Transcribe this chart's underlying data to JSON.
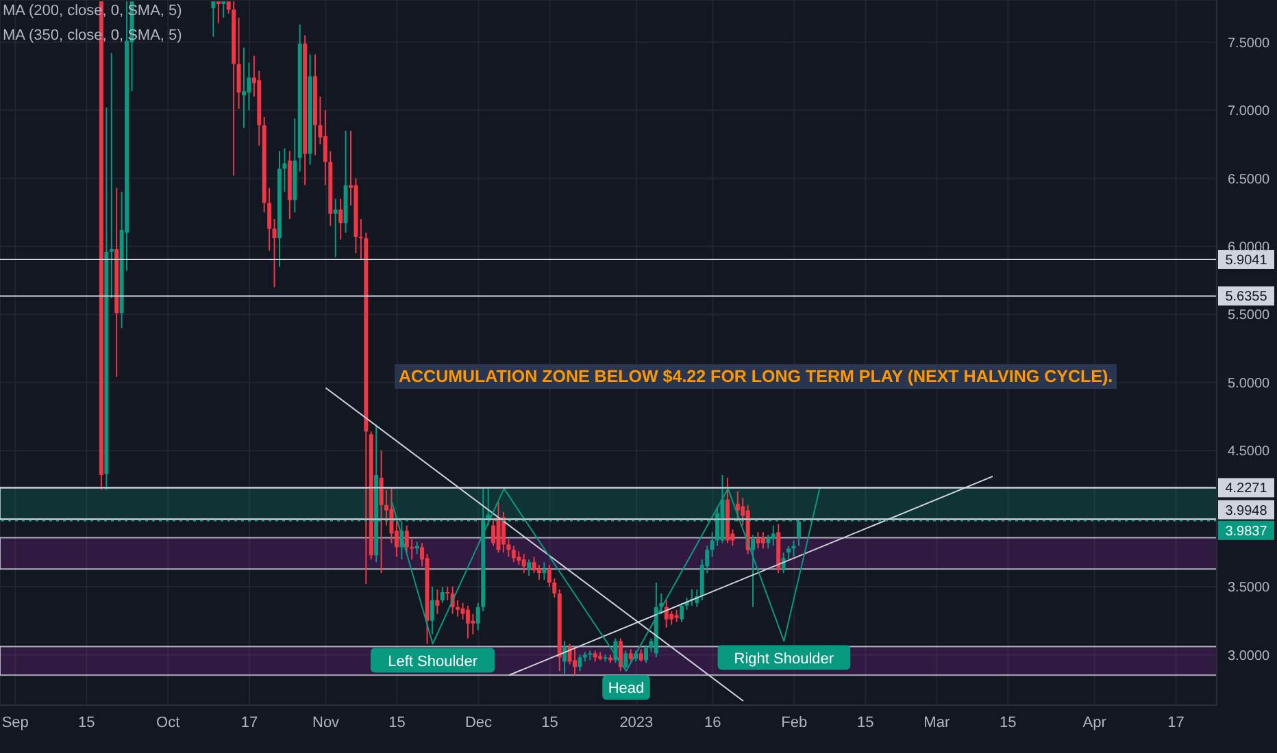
{
  "chart_data": {
    "type": "candlestick",
    "x": [
      "2022-09-18",
      "2022-09-19",
      "2022-09-20",
      "2022-09-21",
      "2022-09-22",
      "2022-09-23",
      "2022-09-24",
      "2022-10-10",
      "2022-10-11",
      "2022-10-12",
      "2022-10-13",
      "2022-10-14",
      "2022-10-15",
      "2022-10-16",
      "2022-10-17",
      "2022-10-18",
      "2022-10-19",
      "2022-10-20",
      "2022-10-21",
      "2022-10-22",
      "2022-10-23",
      "2022-10-24",
      "2022-10-25",
      "2022-10-26",
      "2022-10-27",
      "2022-10-28",
      "2022-10-29",
      "2022-10-30",
      "2022-10-31",
      "2022-11-01",
      "2022-11-02",
      "2022-11-03",
      "2022-11-04",
      "2022-11-05",
      "2022-11-06",
      "2022-11-07",
      "2022-11-08",
      "2022-11-09",
      "2022-11-10",
      "2022-11-11",
      "2022-11-12",
      "2022-11-13",
      "2022-11-14",
      "2022-11-15",
      "2022-11-16",
      "2022-11-17",
      "2022-11-18",
      "2022-11-19",
      "2022-11-20",
      "2022-11-21",
      "2022-11-22",
      "2022-11-23",
      "2022-11-24",
      "2022-11-25",
      "2022-11-26",
      "2022-11-27",
      "2022-11-28",
      "2022-11-29",
      "2022-11-30",
      "2022-12-01",
      "2022-12-02",
      "2022-12-03",
      "2022-12-04",
      "2022-12-05",
      "2022-12-06",
      "2022-12-07",
      "2022-12-08",
      "2022-12-09",
      "2022-12-10",
      "2022-12-11",
      "2022-12-12",
      "2022-12-13",
      "2022-12-14",
      "2022-12-15",
      "2022-12-16",
      "2022-12-17",
      "2022-12-18",
      "2022-12-19",
      "2022-12-20",
      "2022-12-21",
      "2022-12-22",
      "2022-12-23",
      "2022-12-24",
      "2022-12-25",
      "2022-12-26",
      "2022-12-27",
      "2022-12-28",
      "2022-12-29",
      "2022-12-30",
      "2022-12-31",
      "2023-01-01",
      "2023-01-02",
      "2023-01-03",
      "2023-01-04",
      "2023-01-05",
      "2023-01-06",
      "2023-01-07",
      "2023-01-08",
      "2023-01-09",
      "2023-01-10",
      "2023-01-11",
      "2023-01-12",
      "2023-01-13",
      "2023-01-14",
      "2023-01-15",
      "2023-01-16",
      "2023-01-17",
      "2023-01-18",
      "2023-01-19",
      "2023-01-20",
      "2023-01-21",
      "2023-01-22",
      "2023-01-23",
      "2023-01-24",
      "2023-01-25",
      "2023-01-26",
      "2023-01-27",
      "2023-01-28",
      "2023-01-29",
      "2023-01-30",
      "2023-01-31",
      "2023-02-01",
      "2023-02-02"
    ],
    "ohlc": [
      [
        7.8,
        7.8,
        4.21,
        4.32
      ],
      [
        4.33,
        7.02,
        4.21,
        5.96
      ],
      [
        5.96,
        7.42,
        5.62,
        5.98
      ],
      [
        5.98,
        6.43,
        5.04,
        5.51
      ],
      [
        5.51,
        6.4,
        5.4,
        6.12
      ],
      [
        6.1,
        7.8,
        5.82,
        7.51
      ],
      [
        7.5,
        7.8,
        7.14,
        7.8
      ],
      [
        7.75,
        7.8,
        7.54,
        7.8
      ],
      [
        7.8,
        7.8,
        7.64,
        7.78
      ],
      [
        7.78,
        7.8,
        7.68,
        7.8
      ],
      [
        7.8,
        7.8,
        7.71,
        7.74
      ],
      [
        7.74,
        7.8,
        6.52,
        7.34
      ],
      [
        7.34,
        7.68,
        7.01,
        7.13
      ],
      [
        7.11,
        7.46,
        6.87,
        7.14
      ],
      [
        7.13,
        7.35,
        7.0,
        7.24
      ],
      [
        7.24,
        7.4,
        7.1,
        7.2
      ],
      [
        7.22,
        7.29,
        6.74,
        6.89
      ],
      [
        6.89,
        6.95,
        6.25,
        6.32
      ],
      [
        6.32,
        6.43,
        5.97,
        6.13
      ],
      [
        6.13,
        6.2,
        5.7,
        6.06
      ],
      [
        6.06,
        6.7,
        5.85,
        6.57
      ],
      [
        6.57,
        6.72,
        6.4,
        6.61
      ],
      [
        6.63,
        6.7,
        6.2,
        6.34
      ],
      [
        6.34,
        6.94,
        6.25,
        6.63
      ],
      [
        6.65,
        7.63,
        6.55,
        7.49
      ],
      [
        7.49,
        7.55,
        6.45,
        6.68
      ],
      [
        6.68,
        7.41,
        6.6,
        7.25
      ],
      [
        7.25,
        7.41,
        6.67,
        6.89
      ],
      [
        6.89,
        7.1,
        6.75,
        6.8
      ],
      [
        6.81,
        7.0,
        6.45,
        6.62
      ],
      [
        6.62,
        6.7,
        6.15,
        6.24
      ],
      [
        6.24,
        6.35,
        5.92,
        6.27
      ],
      [
        6.27,
        6.35,
        6.05,
        6.17
      ],
      [
        6.17,
        6.85,
        6.1,
        6.45
      ],
      [
        6.45,
        6.85,
        6.3,
        6.43
      ],
      [
        6.45,
        6.5,
        5.95,
        6.07
      ],
      [
        6.07,
        6.2,
        5.9,
        6.06
      ],
      [
        6.06,
        6.1,
        3.52,
        4.64
      ],
      [
        4.62,
        4.64,
        3.7,
        3.73
      ],
      [
        3.73,
        4.69,
        3.68,
        4.32
      ],
      [
        4.3,
        4.5,
        3.6,
        4.1
      ],
      [
        4.1,
        4.21,
        3.95,
        4.06
      ],
      [
        4.07,
        4.22,
        3.82,
        3.89
      ],
      [
        3.91,
        4.0,
        3.72,
        3.79
      ],
      [
        3.79,
        3.98,
        3.7,
        3.91
      ],
      [
        3.91,
        3.95,
        3.75,
        3.79
      ],
      [
        3.79,
        3.85,
        3.7,
        3.78
      ],
      [
        3.78,
        3.83,
        3.74,
        3.8
      ],
      [
        3.79,
        3.82,
        3.65,
        3.7
      ],
      [
        3.71,
        3.74,
        3.08,
        3.25
      ],
      [
        3.25,
        3.5,
        3.15,
        3.4
      ],
      [
        3.4,
        3.48,
        3.3,
        3.36
      ],
      [
        3.4,
        3.5,
        3.38,
        3.46
      ],
      [
        3.46,
        3.5,
        3.4,
        3.45
      ],
      [
        3.45,
        3.5,
        3.3,
        3.35
      ],
      [
        3.35,
        3.4,
        3.28,
        3.33
      ],
      [
        3.34,
        3.38,
        3.26,
        3.3
      ],
      [
        3.33,
        3.36,
        3.12,
        3.23
      ],
      [
        3.25,
        3.3,
        3.15,
        3.23
      ],
      [
        3.23,
        3.38,
        3.18,
        3.35
      ],
      [
        3.35,
        4.22,
        3.32,
        3.99
      ],
      [
        3.99,
        4.22,
        3.95,
        4.03
      ],
      [
        3.95,
        4.0,
        3.8,
        3.82
      ],
      [
        4.01,
        4.12,
        3.75,
        3.77
      ],
      [
        4.01,
        4.05,
        3.75,
        3.81
      ],
      [
        3.81,
        3.85,
        3.72,
        3.77
      ],
      [
        3.77,
        3.8,
        3.68,
        3.71
      ],
      [
        3.72,
        3.76,
        3.66,
        3.69
      ],
      [
        3.7,
        3.74,
        3.6,
        3.65
      ],
      [
        3.63,
        3.7,
        3.58,
        3.68
      ],
      [
        3.68,
        3.72,
        3.6,
        3.62
      ],
      [
        3.63,
        3.66,
        3.55,
        3.6
      ],
      [
        3.6,
        3.68,
        3.55,
        3.63
      ],
      [
        3.63,
        3.66,
        3.5,
        3.53
      ],
      [
        3.53,
        3.56,
        3.42,
        3.45
      ],
      [
        3.45,
        3.48,
        2.88,
        2.98
      ],
      [
        2.95,
        3.1,
        2.86,
        3.06
      ],
      [
        3.06,
        3.08,
        2.93,
        2.95
      ],
      [
        2.96,
        3.05,
        2.85,
        2.91
      ],
      [
        2.91,
        3.0,
        2.88,
        2.98
      ],
      [
        2.98,
        3.02,
        2.95,
        3.0
      ],
      [
        3.0,
        3.03,
        2.96,
        3.01
      ],
      [
        3.01,
        3.03,
        2.95,
        2.98
      ],
      [
        2.99,
        3.02,
        2.96,
        2.97
      ],
      [
        2.97,
        3.0,
        2.95,
        2.98
      ],
      [
        2.98,
        3.0,
        2.94,
        2.96
      ],
      [
        2.96,
        3.12,
        2.94,
        3.1
      ],
      [
        3.1,
        3.12,
        2.88,
        2.91
      ],
      [
        2.91,
        3.03,
        2.9,
        3.01
      ],
      [
        3.01,
        3.04,
        2.95,
        2.97
      ],
      [
        2.97,
        3.03,
        2.95,
        3.01
      ],
      [
        3.01,
        3.04,
        2.95,
        2.96
      ],
      [
        2.96,
        3.07,
        2.94,
        3.05
      ],
      [
        3.05,
        3.12,
        3.02,
        3.1
      ],
      [
        3.01,
        3.53,
        2.98,
        3.35
      ],
      [
        3.35,
        3.45,
        3.3,
        3.38
      ],
      [
        3.35,
        3.4,
        3.2,
        3.26
      ],
      [
        3.3,
        3.32,
        3.22,
        3.26
      ],
      [
        3.29,
        3.33,
        3.24,
        3.27
      ],
      [
        3.26,
        3.38,
        3.24,
        3.36
      ],
      [
        3.36,
        3.42,
        3.33,
        3.39
      ],
      [
        3.4,
        3.48,
        3.36,
        3.41
      ],
      [
        3.38,
        3.48,
        3.35,
        3.43
      ],
      [
        3.43,
        3.7,
        3.4,
        3.66
      ],
      [
        3.65,
        3.8,
        3.6,
        3.77
      ],
      [
        3.77,
        3.9,
        3.72,
        3.84
      ],
      [
        3.84,
        4.08,
        3.8,
        4.04
      ],
      [
        3.84,
        4.32,
        3.82,
        4.14
      ],
      [
        4.14,
        4.3,
        3.82,
        3.84
      ],
      [
        3.89,
        3.92,
        3.8,
        3.84
      ],
      [
        4.11,
        4.2,
        3.98,
        4.06
      ],
      [
        4.09,
        4.15,
        3.95,
        4.02
      ],
      [
        4.06,
        4.1,
        3.74,
        3.77
      ],
      [
        3.77,
        3.88,
        3.35,
        3.85
      ],
      [
        3.85,
        3.9,
        3.78,
        3.82
      ],
      [
        3.86,
        3.9,
        3.78,
        3.82
      ],
      [
        3.82,
        3.88,
        3.78,
        3.86
      ],
      [
        3.85,
        3.95,
        3.8,
        3.89
      ],
      [
        3.9,
        3.96,
        3.6,
        3.63
      ],
      [
        3.63,
        3.75,
        3.6,
        3.71
      ],
      [
        3.75,
        3.8,
        3.7,
        3.78
      ],
      [
        3.78,
        3.84,
        3.72,
        3.8
      ],
      [
        3.86,
        3.99,
        3.8,
        3.98
      ]
    ],
    "series": [
      {
        "type": "line",
        "color": "#d1d4dc",
        "x": [
          "2022-11-01",
          "2023-01-22"
        ],
        "values": [
          4.96,
          2.66
        ]
      },
      {
        "type": "line",
        "color": "#d1d4dc",
        "x": [
          "2022-12-07",
          "2023-03-12"
        ],
        "values": [
          2.85,
          4.31
        ]
      },
      {
        "type": "line",
        "color": "#089981",
        "x": [
          "2022-11-14",
          "2022-11-22",
          "2022-12-06",
          "2022-12-30",
          "2023-01-19",
          "2023-01-30",
          "2023-02-06"
        ],
        "values": [
          4.12,
          3.08,
          4.22,
          2.88,
          4.22,
          3.1,
          4.22
        ]
      }
    ],
    "marker": "none",
    "xlim": [
      "2022-08-29",
      "2023-04-25"
    ],
    "xticks": [
      {
        "value": "2022-09-01",
        "label": "Sep"
      },
      {
        "value": "2022-09-15",
        "label": "15"
      },
      {
        "value": "2022-10-01",
        "label": "Oct"
      },
      {
        "value": "2022-10-17",
        "label": "17"
      },
      {
        "value": "2022-11-01",
        "label": "Nov"
      },
      {
        "value": "2022-11-15",
        "label": "15"
      },
      {
        "value": "2022-12-01",
        "label": "Dec"
      },
      {
        "value": "2022-12-15",
        "label": "15"
      },
      {
        "value": "2023-01-01",
        "label": "2023"
      },
      {
        "value": "2023-01-16",
        "label": "16"
      },
      {
        "value": "2023-02-01",
        "label": "Feb"
      },
      {
        "value": "2023-02-15",
        "label": "15"
      },
      {
        "value": "2023-03-01",
        "label": "Mar"
      },
      {
        "value": "2023-03-15",
        "label": "15"
      },
      {
        "value": "2023-04-01",
        "label": "Apr"
      },
      {
        "value": "2023-04-17",
        "label": "17"
      }
    ],
    "ylim": [
      2.63,
      7.81
    ],
    "yticks": [
      {
        "value": 3,
        "label": "3.0000"
      },
      {
        "value": 3.5,
        "label": "3.5000"
      },
      {
        "value": 4,
        "label": null
      },
      {
        "value": 4.5,
        "label": "4.5000"
      },
      {
        "value": 5,
        "label": "5.0000"
      },
      {
        "value": 5.5,
        "label": "5.5000"
      },
      {
        "value": 6,
        "label": "6.0000"
      },
      {
        "value": 6.5,
        "label": "6.5000"
      },
      {
        "value": 7,
        "label": "7.0000"
      },
      {
        "value": 7.5,
        "label": "7.5000"
      }
    ],
    "grid": true,
    "ref_lines": [
      {
        "axis": "y",
        "value": 5.9041,
        "label": "5.9041",
        "color": "#d1d4dc"
      },
      {
        "axis": "y",
        "value": 5.6355,
        "label": "5.6355",
        "color": "#d1d4dc"
      },
      {
        "axis": "y",
        "value": 4.2271,
        "label": "4.2271",
        "color": "#d1d4dc"
      },
      {
        "axis": "y",
        "value": 3.9948,
        "label": "3.9948",
        "color": "#d1d4dc"
      },
      {
        "axis": "y",
        "value": 3.9837,
        "label": "3.9837",
        "color": "#089981",
        "line_style": "dotted"
      }
    ],
    "bands": [
      {
        "axis": "y",
        "from": 3.63,
        "to": 3.86,
        "color": "#9c27b0"
      },
      {
        "axis": "y",
        "from": 2.85,
        "to": 3.06,
        "color": "#9c27b0"
      },
      {
        "axis": "y",
        "from": 3.9948,
        "to": 4.2271,
        "color": "#089981"
      }
    ],
    "annotations": [
      "MA (200, close, 0, SMA, 5)",
      "MA (350, close, 0, SMA, 5)",
      "ACCUMULATION ZONE BELOW $4.22 FOR LONG TERM PLAY (NEXT HALVING CYCLE).",
      {
        "text": "Left Shoulder",
        "x": "2022-11-22",
        "y": 3.08
      },
      {
        "text": "Head",
        "x": "2022-12-30",
        "y": 2.88
      },
      {
        "text": "Right Shoulder",
        "x": "2023-01-30",
        "y": 3.1
      }
    ]
  }
}
